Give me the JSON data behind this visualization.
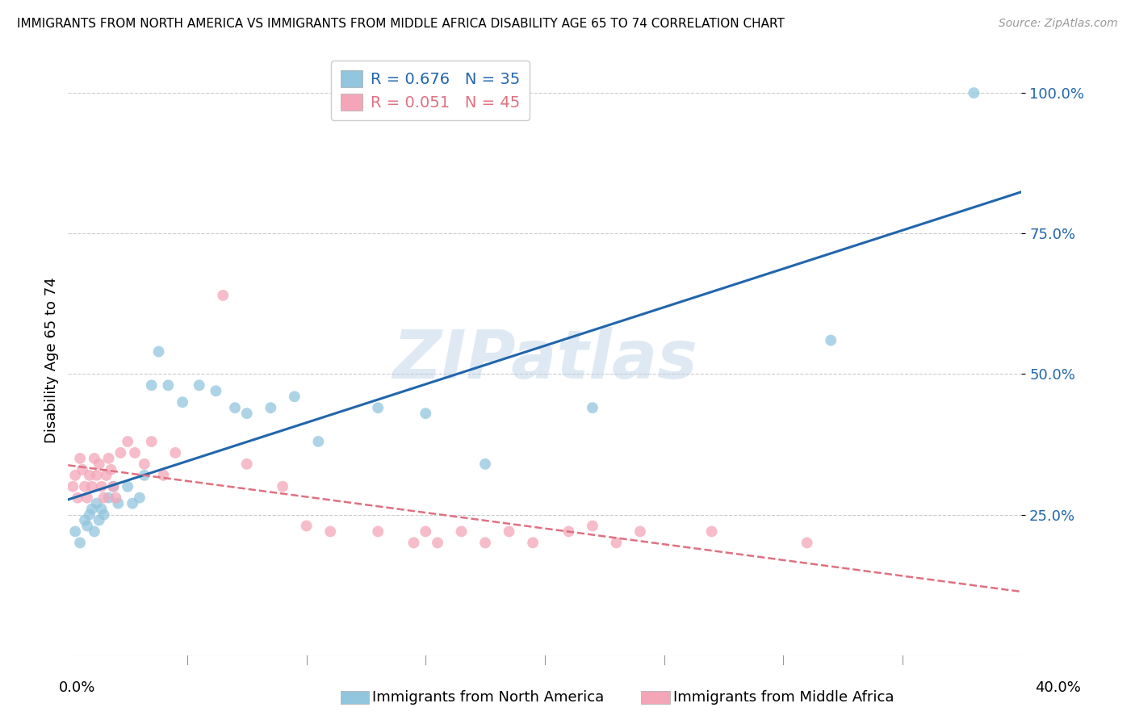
{
  "title": "IMMIGRANTS FROM NORTH AMERICA VS IMMIGRANTS FROM MIDDLE AFRICA DISABILITY AGE 65 TO 74 CORRELATION CHART",
  "source": "Source: ZipAtlas.com",
  "ylabel": "Disability Age 65 to 74",
  "xlim": [
    0.0,
    0.4
  ],
  "ylim": [
    0.0,
    1.05
  ],
  "y_ticks": [
    0.25,
    0.5,
    0.75,
    1.0
  ],
  "y_tick_labels": [
    "25.0%",
    "50.0%",
    "75.0%",
    "100.0%"
  ],
  "legend_entry_blue": "R = 0.676   N = 35",
  "legend_entry_pink": "R = 0.051   N = 45",
  "blue_color": "#92c5de",
  "pink_color": "#f4a6b8",
  "blue_line_color": "#2166ac",
  "pink_line_color": "#e07080",
  "watermark_text": "ZIPatlas",
  "blue_scatter_x": [
    0.003,
    0.005,
    0.007,
    0.008,
    0.009,
    0.01,
    0.011,
    0.012,
    0.013,
    0.014,
    0.015,
    0.017,
    0.019,
    0.021,
    0.025,
    0.027,
    0.03,
    0.032,
    0.035,
    0.038,
    0.042,
    0.048,
    0.055,
    0.062,
    0.07,
    0.075,
    0.085,
    0.095,
    0.105,
    0.13,
    0.15,
    0.175,
    0.22,
    0.32,
    0.38
  ],
  "blue_scatter_y": [
    0.22,
    0.2,
    0.24,
    0.23,
    0.25,
    0.26,
    0.22,
    0.27,
    0.24,
    0.26,
    0.25,
    0.28,
    0.3,
    0.27,
    0.3,
    0.27,
    0.28,
    0.32,
    0.48,
    0.54,
    0.48,
    0.45,
    0.48,
    0.47,
    0.44,
    0.43,
    0.44,
    0.46,
    0.38,
    0.44,
    0.43,
    0.34,
    0.44,
    0.56,
    1.0
  ],
  "pink_scatter_x": [
    0.002,
    0.003,
    0.004,
    0.005,
    0.006,
    0.007,
    0.008,
    0.009,
    0.01,
    0.011,
    0.012,
    0.013,
    0.014,
    0.015,
    0.016,
    0.017,
    0.018,
    0.019,
    0.02,
    0.022,
    0.025,
    0.028,
    0.032,
    0.035,
    0.04,
    0.045,
    0.065,
    0.075,
    0.09,
    0.1,
    0.11,
    0.13,
    0.145,
    0.15,
    0.155,
    0.165,
    0.175,
    0.185,
    0.195,
    0.21,
    0.22,
    0.23,
    0.24,
    0.27,
    0.31
  ],
  "pink_scatter_y": [
    0.3,
    0.32,
    0.28,
    0.35,
    0.33,
    0.3,
    0.28,
    0.32,
    0.3,
    0.35,
    0.32,
    0.34,
    0.3,
    0.28,
    0.32,
    0.35,
    0.33,
    0.3,
    0.28,
    0.36,
    0.38,
    0.36,
    0.34,
    0.38,
    0.32,
    0.36,
    0.64,
    0.34,
    0.3,
    0.23,
    0.22,
    0.22,
    0.2,
    0.22,
    0.2,
    0.22,
    0.2,
    0.22,
    0.2,
    0.22,
    0.23,
    0.2,
    0.22,
    0.22,
    0.2
  ],
  "background_color": "#ffffff",
  "grid_color": "#cccccc"
}
